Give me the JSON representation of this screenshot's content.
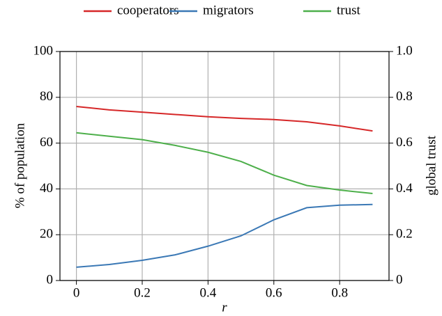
{
  "chart_data": {
    "type": "line",
    "x": [
      0,
      0.1,
      0.2,
      0.3,
      0.4,
      0.5,
      0.6,
      0.7,
      0.8,
      0.9
    ],
    "xlabel": "r",
    "ylabel": "% of population",
    "y2label": "global trust",
    "series": [
      {
        "name": "cooperators",
        "color": "#d62728",
        "values": [
          76,
          74.5,
          73.5,
          72.5,
          71.5,
          70.8,
          70.3,
          69.3,
          67.5,
          65.3
        ]
      },
      {
        "name": "migrators",
        "color": "#3a78b5",
        "values": [
          5.8,
          7,
          8.8,
          11.2,
          15,
          19.5,
          26.5,
          31.8,
          32.9,
          33.2
        ]
      },
      {
        "name": "trust",
        "color": "#4daf4a",
        "axis": "y2",
        "values": [
          0.645,
          0.63,
          0.615,
          0.59,
          0.56,
          0.52,
          0.46,
          0.415,
          0.395,
          0.38
        ]
      }
    ],
    "xlim": [
      -0.05,
      0.95
    ],
    "xticks": [
      0,
      0.2,
      0.4,
      0.6,
      0.8
    ],
    "ylim": [
      0,
      100
    ],
    "yticks": [
      0,
      20,
      40,
      60,
      80,
      100
    ],
    "y2lim": [
      0,
      1
    ],
    "y2ticks": [
      0,
      0.2,
      0.4,
      0.6,
      0.8,
      {
        "value": 1,
        "label": "1.0"
      }
    ],
    "grid": true,
    "legend": "top"
  }
}
